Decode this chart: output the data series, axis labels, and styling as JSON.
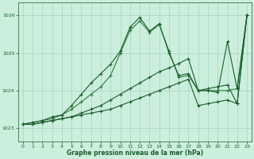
{
  "title": "Graphe pression niveau de la mer (hPa)",
  "background_color": "#cceedd",
  "grid_color": "#99ccbb",
  "line_color_dark": "#1a5c2a",
  "line_color_medium": "#2e7d40",
  "xlim": [
    -0.5,
    23.5
  ],
  "ylim": [
    1022.65,
    1026.35
  ],
  "yticks": [
    1023,
    1024,
    1025,
    1026
  ],
  "xticks": [
    0,
    1,
    2,
    3,
    4,
    5,
    6,
    7,
    8,
    9,
    10,
    11,
    12,
    13,
    14,
    15,
    16,
    17,
    18,
    19,
    20,
    21,
    22,
    23
  ],
  "s1": [
    1023.1,
    1023.1,
    1023.15,
    1023.2,
    1023.25,
    1023.3,
    1023.35,
    1023.4,
    1023.45,
    1023.5,
    1023.6,
    1023.7,
    1023.8,
    1023.9,
    1024.0,
    1024.1,
    1024.2,
    1024.3,
    1023.6,
    1023.65,
    1023.7,
    1023.75,
    1023.65,
    1026.0
  ],
  "s2": [
    1023.1,
    1023.1,
    1023.15,
    1023.2,
    1023.25,
    1023.3,
    1023.4,
    1023.5,
    1023.6,
    1023.75,
    1023.9,
    1024.05,
    1024.2,
    1024.35,
    1024.5,
    1024.6,
    1024.72,
    1024.85,
    1024.0,
    1024.05,
    1024.1,
    1024.15,
    1023.65,
    1026.0
  ],
  "s3": [
    1023.1,
    1023.15,
    1023.2,
    1023.25,
    1023.35,
    1023.5,
    1023.7,
    1023.9,
    1024.1,
    1024.4,
    1025.0,
    1025.6,
    1025.85,
    1025.55,
    1025.75,
    1025.05,
    1024.35,
    1024.4,
    1024.0,
    1024.0,
    1024.0,
    1024.0,
    1024.05,
    1026.0
  ],
  "s4": [
    1023.1,
    1023.15,
    1023.2,
    1023.3,
    1023.35,
    1023.6,
    1023.9,
    1024.2,
    1024.45,
    1024.7,
    1025.05,
    1025.68,
    1025.95,
    1025.58,
    1025.78,
    1025.0,
    1024.4,
    1024.45,
    1024.0,
    1024.0,
    1023.95,
    1025.3,
    1024.05,
    1026.0
  ]
}
